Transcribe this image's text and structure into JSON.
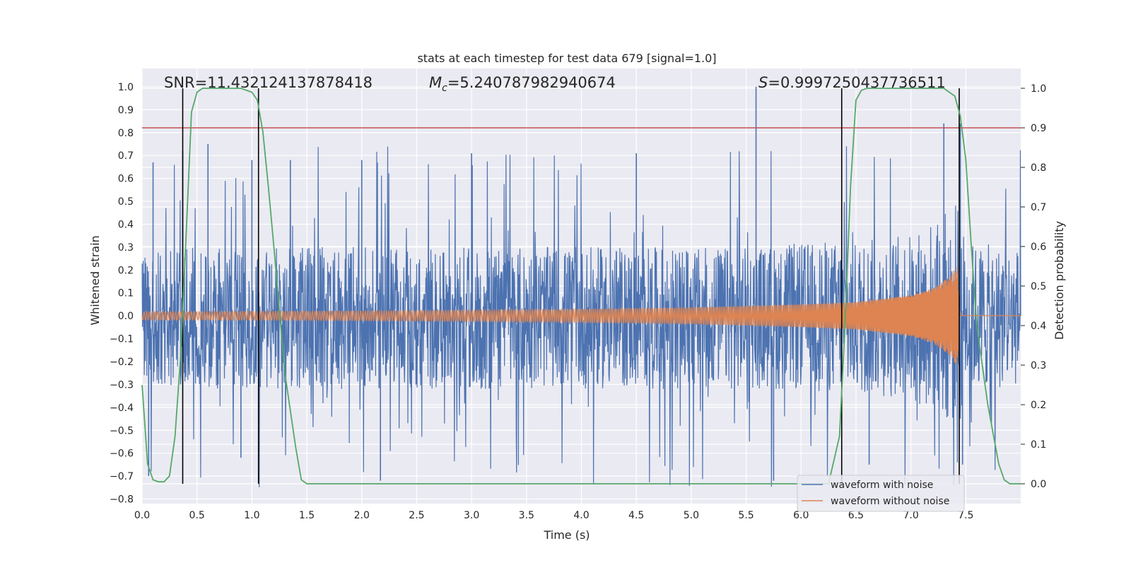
{
  "chart_data": {
    "type": "line",
    "title": "stats at each timestep for test data 679 [signal=1.0]",
    "xlabel": "Time (s)",
    "ylabel_left": "Whitened strain",
    "ylabel_right": "Detection probability",
    "xlim": [
      0.0,
      8.0
    ],
    "ylim_left": [
      -0.82,
      1.08
    ],
    "ylim_right": [
      -0.05,
      1.05
    ],
    "x_ticks": [
      "0.0",
      "0.5",
      "1.0",
      "1.5",
      "2.0",
      "2.5",
      "3.0",
      "3.5",
      "4.0",
      "4.5",
      "5.0",
      "5.5",
      "6.0",
      "6.5",
      "7.0",
      "7.5"
    ],
    "y_ticks_left": [
      "1.0",
      "0.9",
      "0.8",
      "0.7",
      "0.6",
      "0.5",
      "0.4",
      "0.3",
      "0.2",
      "0.1",
      "0.0",
      "−0.1",
      "−0.2",
      "−0.3",
      "−0.4",
      "−0.5",
      "−0.6",
      "−0.7",
      "−0.8"
    ],
    "y_ticks_right": [
      "1.0",
      "0.9",
      "0.8",
      "0.7",
      "0.6",
      "0.5",
      "0.4",
      "0.3",
      "0.2",
      "0.1",
      "0.0"
    ],
    "annotations": {
      "snr": "SNR=11.432124137878418",
      "mc_symbol": "M",
      "mc_sub": "c",
      "mc_value": "=5.240787982940674",
      "s_symbol": "S",
      "s_value": "=0.9997250437736511"
    },
    "threshold": {
      "value": 0.9,
      "axis": "right",
      "color": "#c44e52"
    },
    "vertical_markers": [
      0.37,
      1.06,
      6.37,
      7.44
    ],
    "noise_envelope": {
      "x": [
        0.0,
        0.5,
        1.0,
        1.5,
        2.0,
        2.5,
        3.0,
        3.5,
        4.0,
        4.5,
        5.0,
        5.5,
        6.0,
        6.5,
        7.0,
        7.44,
        7.5,
        8.0
      ],
      "upper": [
        0.28,
        0.3,
        0.29,
        0.3,
        0.3,
        0.3,
        0.3,
        0.3,
        0.3,
        0.3,
        0.3,
        0.3,
        0.32,
        0.33,
        0.36,
        0.5,
        0.32,
        0.3
      ],
      "lower": [
        -0.32,
        -0.32,
        -0.32,
        -0.32,
        -0.32,
        -0.32,
        -0.32,
        -0.32,
        -0.32,
        -0.32,
        -0.32,
        -0.32,
        -0.33,
        -0.34,
        -0.37,
        -0.5,
        -0.33,
        -0.32
      ],
      "spike_max": 0.75,
      "spike_min": -0.75
    },
    "noise_peaks": [
      {
        "x": 0.1,
        "y": 0.67
      },
      {
        "x": 0.37,
        "y": 0.72
      },
      {
        "x": 0.6,
        "y": 0.75
      },
      {
        "x": 1.0,
        "y": 0.68
      },
      {
        "x": 1.35,
        "y": 0.68
      },
      {
        "x": 2.0,
        "y": 0.68
      },
      {
        "x": 3.0,
        "y": 0.71
      },
      {
        "x": 4.5,
        "y": 0.71
      },
      {
        "x": 5.59,
        "y": 1.0
      },
      {
        "x": 7.3,
        "y": 0.84
      },
      {
        "x": 7.45,
        "y": 0.84
      },
      {
        "x": 0.06,
        "y": -0.7
      },
      {
        "x": 0.9,
        "y": -0.62
      },
      {
        "x": 2.17,
        "y": -0.72
      },
      {
        "x": 5.75,
        "y": -0.72
      },
      {
        "x": 6.62,
        "y": -0.65
      },
      {
        "x": 7.47,
        "y": -0.65
      }
    ],
    "series": [
      {
        "name": "waveform with noise",
        "color": "#4c72b0",
        "description_values": "broadband noise, mostly within ±0.3 with spikes up to 1.0"
      },
      {
        "name": "waveform without noise",
        "color": "#dd8452",
        "chirp": {
          "x": [
            0.0,
            1.0,
            2.0,
            3.0,
            4.0,
            5.0,
            6.0,
            6.5,
            7.0,
            7.2,
            7.35,
            7.42,
            7.44,
            7.46,
            8.0
          ],
          "amplitude": [
            0.018,
            0.019,
            0.021,
            0.024,
            0.029,
            0.036,
            0.05,
            0.06,
            0.09,
            0.12,
            0.17,
            0.22,
            0.1,
            0.003,
            0.003
          ],
          "merger_time": 7.44
        }
      },
      {
        "name": "Detection probability",
        "color": "#55a868",
        "axis": "right",
        "x": [
          0.0,
          0.05,
          0.1,
          0.15,
          0.2,
          0.25,
          0.3,
          0.35,
          0.4,
          0.45,
          0.5,
          0.55,
          0.6,
          0.7,
          0.8,
          0.9,
          1.0,
          1.05,
          1.1,
          1.15,
          1.2,
          1.3,
          1.4,
          1.45,
          1.5,
          2.0,
          3.0,
          4.0,
          5.0,
          6.0,
          6.25,
          6.35,
          6.4,
          6.45,
          6.5,
          6.55,
          6.6,
          7.0,
          7.3,
          7.4,
          7.45,
          7.5,
          7.55,
          7.6,
          7.7,
          7.8,
          7.85,
          7.9,
          8.0
        ],
        "y": [
          0.25,
          0.05,
          0.01,
          0.005,
          0.005,
          0.02,
          0.12,
          0.32,
          0.62,
          0.94,
          0.99,
          1.0,
          1.0,
          1.0,
          1.0,
          1.0,
          0.99,
          0.97,
          0.89,
          0.75,
          0.6,
          0.28,
          0.09,
          0.01,
          0.0,
          0.0,
          0.0,
          0.0,
          0.0,
          0.0,
          0.0,
          0.12,
          0.4,
          0.75,
          0.97,
          0.995,
          1.0,
          1.0,
          1.0,
          0.98,
          0.93,
          0.82,
          0.6,
          0.4,
          0.2,
          0.05,
          0.01,
          0.0,
          0.0
        ]
      }
    ],
    "legend": {
      "placement": "lower right",
      "entries": [
        "waveform with noise",
        "waveform without noise"
      ]
    },
    "grid": true,
    "background_color": "#eaeaf2",
    "marker_color": "#000000"
  }
}
